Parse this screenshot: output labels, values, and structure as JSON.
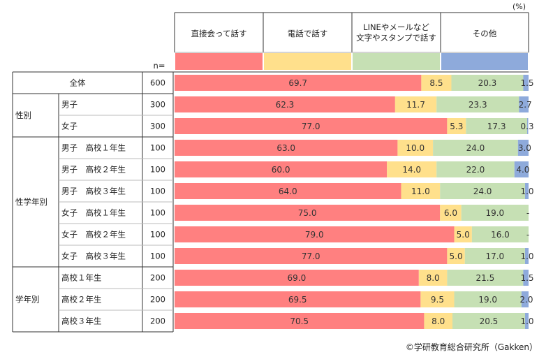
{
  "chart_data": {
    "type": "bar",
    "stacked": true,
    "orientation": "horizontal",
    "unit_label": "(%)",
    "n_label": "n=",
    "series": [
      {
        "name": "直接会って話す",
        "color": "#ff8080"
      },
      {
        "name": "電話で話す",
        "color": "#ffe08c"
      },
      {
        "name": "LINEやメールなど\n文字やスタンプで話す",
        "color": "#c6e0b4"
      },
      {
        "name": "その他",
        "color": "#8eaadb"
      }
    ],
    "rows": [
      {
        "group": "",
        "label": "全体",
        "n": "600",
        "values": [
          69.7,
          8.5,
          20.3,
          1.5
        ],
        "labels": [
          "69.7",
          "8.5",
          "20.3",
          "1.5"
        ]
      },
      {
        "group": "性別",
        "label": "男子",
        "n": "300",
        "values": [
          62.3,
          11.7,
          23.3,
          2.7
        ],
        "labels": [
          "62.3",
          "11.7",
          "23.3",
          "2.7"
        ]
      },
      {
        "group": "性別",
        "label": "女子",
        "n": "300",
        "values": [
          77.0,
          5.3,
          17.3,
          0.3
        ],
        "labels": [
          "77.0",
          "5.3",
          "17.3",
          "0.3"
        ]
      },
      {
        "group": "性学年別",
        "label": "男子　高校１年生",
        "n": "100",
        "values": [
          63.0,
          10.0,
          24.0,
          3.0
        ],
        "labels": [
          "63.0",
          "10.0",
          "24.0",
          "3.0"
        ]
      },
      {
        "group": "性学年別",
        "label": "男子　高校２年生",
        "n": "100",
        "values": [
          60.0,
          14.0,
          22.0,
          4.0
        ],
        "labels": [
          "60.0",
          "14.0",
          "22.0",
          "4.0"
        ]
      },
      {
        "group": "性学年別",
        "label": "男子　高校３年生",
        "n": "100",
        "values": [
          64.0,
          11.0,
          24.0,
          1.0
        ],
        "labels": [
          "64.0",
          "11.0",
          "24.0",
          "1.0"
        ]
      },
      {
        "group": "性学年別",
        "label": "女子　高校１年生",
        "n": "100",
        "values": [
          75.0,
          6.0,
          19.0,
          0
        ],
        "labels": [
          "75.0",
          "6.0",
          "19.0",
          "-"
        ]
      },
      {
        "group": "性学年別",
        "label": "女子　高校２年生",
        "n": "100",
        "values": [
          79.0,
          5.0,
          16.0,
          0
        ],
        "labels": [
          "79.0",
          "5.0",
          "16.0",
          "-"
        ]
      },
      {
        "group": "性学年別",
        "label": "女子　高校３年生",
        "n": "100",
        "values": [
          77.0,
          5.0,
          17.0,
          1.0
        ],
        "labels": [
          "77.0",
          "5.0",
          "17.0",
          "1.0"
        ]
      },
      {
        "group": "学年別",
        "label": "高校１年生",
        "n": "200",
        "values": [
          69.0,
          8.0,
          21.5,
          1.5
        ],
        "labels": [
          "69.0",
          "8.0",
          "21.5",
          "1.5"
        ]
      },
      {
        "group": "学年別",
        "label": "高校２年生",
        "n": "200",
        "values": [
          69.5,
          9.5,
          19.0,
          2.0
        ],
        "labels": [
          "69.5",
          "9.5",
          "19.0",
          "2.0"
        ]
      },
      {
        "group": "学年別",
        "label": "高校３年生",
        "n": "200",
        "values": [
          70.5,
          8.0,
          20.5,
          1.0
        ],
        "labels": [
          "70.5",
          "8.0",
          "20.5",
          "1.0"
        ]
      }
    ],
    "xlim": [
      0,
      100
    ]
  },
  "footer": "©学研教育総合研究所（Gakken）"
}
